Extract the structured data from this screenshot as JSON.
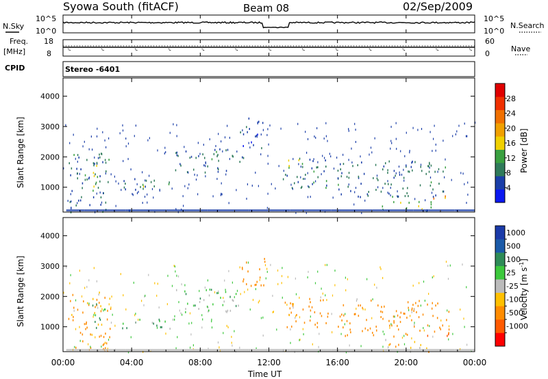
{
  "header": {
    "title": "Syowa South (fitACF)",
    "beam": "Beam 08",
    "date": "02/Sep/2009"
  },
  "top_panels": {
    "nsky_label": "N.Sky",
    "nsky_ticks": [
      "10^5",
      "10^0"
    ],
    "nsearch_label": "N.Search",
    "nsearch_ticks": [
      "10^5",
      "10^0"
    ],
    "freq_label": "Freq.",
    "freq_unit": "[MHz]",
    "freq_ticks": [
      "18",
      "8"
    ],
    "nave_label": "Nave",
    "nave_ticks": [
      "60",
      "0"
    ],
    "cpid_label": "CPID",
    "cpid_value": "Stereo -6401"
  },
  "colors": {
    "power_scale": [
      "#0a18f0",
      "#1a3ea8",
      "#2f7a5a",
      "#3aa040",
      "#f0d000",
      "#f0a000",
      "#f07000",
      "#f03000",
      "#e00000"
    ],
    "velocity_scale": [
      "#ff0000",
      "#ff5a00",
      "#ff8c00",
      "#ffc000",
      "#bbbbbb",
      "#3cc83c",
      "#2e8b57",
      "#1a5aa8",
      "#1a3aa8"
    ]
  },
  "chart_data": [
    {
      "type": "heatmap",
      "panel": "power",
      "ylabel": "Slant Range [km]",
      "yticks": [
        "1000",
        "2000",
        "3000",
        "4000"
      ],
      "ylim": [
        180,
        4600
      ],
      "xlim": [
        "00:00",
        "24:00"
      ],
      "colorbar_label": "Power [dB]",
      "colorbar_ticks": [
        "4",
        "8",
        "12",
        "16",
        "20",
        "24",
        "28"
      ],
      "colorbar_range": [
        0,
        32
      ],
      "features": [
        {
          "t0": 0.3,
          "t1": 2.8,
          "r0": 200,
          "r1": 2200,
          "v": 8
        },
        {
          "t0": 1.6,
          "t1": 2.2,
          "r0": 800,
          "r1": 1800,
          "v": 14
        },
        {
          "t0": 3.2,
          "t1": 6.5,
          "r0": 900,
          "r1": 1300,
          "v": 8
        },
        {
          "t0": 4.5,
          "t1": 5.2,
          "r0": 950,
          "r1": 1150,
          "v": 13
        },
        {
          "t0": 6.5,
          "t1": 10.5,
          "r0": 1500,
          "r1": 2300,
          "v": 7
        },
        {
          "t0": 8.5,
          "t1": 9.4,
          "r0": 1900,
          "r1": 2200,
          "v": 12
        },
        {
          "t0": 10.3,
          "t1": 11.8,
          "r0": 2300,
          "r1": 3300,
          "v": 6
        },
        {
          "t0": 12.8,
          "t1": 15.5,
          "r0": 1000,
          "r1": 2000,
          "v": 9
        },
        {
          "t0": 13.0,
          "t1": 14.0,
          "r0": 1500,
          "r1": 1950,
          "v": 14
        },
        {
          "t0": 16.0,
          "t1": 22.5,
          "r0": 700,
          "r1": 1900,
          "v": 8
        },
        {
          "t0": 21.0,
          "t1": 22.5,
          "r0": 650,
          "r1": 800,
          "v": 20
        },
        {
          "t0": 18.5,
          "t1": 21.5,
          "r0": 200,
          "r1": 600,
          "v": 14
        }
      ]
    },
    {
      "type": "heatmap",
      "panel": "velocity",
      "ylabel": "Slant Range [km]",
      "yticks": [
        "1000",
        "2000",
        "3000",
        "4000"
      ],
      "ylim": [
        180,
        4600
      ],
      "xlim": [
        "00:00",
        "24:00"
      ],
      "xlabel": "Time UT",
      "xticks": [
        "00:00",
        "04:00",
        "08:00",
        "12:00",
        "16:00",
        "20:00",
        "00:00"
      ],
      "colorbar_label": "Velocity [m s^-1]",
      "colorbar_ticks": [
        "1000",
        "500",
        "100",
        "25",
        "-25",
        "-100",
        "-500",
        "-1000"
      ],
      "features": [
        {
          "t0": 0.3,
          "t1": 2.8,
          "r0": 200,
          "r1": 2200,
          "v": -150
        },
        {
          "t0": 1.6,
          "t1": 2.2,
          "r0": 800,
          "r1": 1800,
          "v": 150
        },
        {
          "t0": 3.2,
          "t1": 6.5,
          "r0": 900,
          "r1": 1300,
          "v": 80
        },
        {
          "t0": 6.5,
          "t1": 10.5,
          "r0": 1500,
          "r1": 2300,
          "v": 60
        },
        {
          "t0": 10.3,
          "t1": 11.8,
          "r0": 2300,
          "r1": 3300,
          "v": -200
        },
        {
          "t0": 12.8,
          "t1": 15.5,
          "r0": 1000,
          "r1": 2000,
          "v": -300
        },
        {
          "t0": 16.0,
          "t1": 22.5,
          "r0": 700,
          "r1": 1900,
          "v": -400
        },
        {
          "t0": 21.0,
          "t1": 22.5,
          "r0": 650,
          "r1": 800,
          "v": -700
        },
        {
          "t0": 18.5,
          "t1": 21.5,
          "r0": 200,
          "r1": 600,
          "v": -60
        }
      ]
    }
  ]
}
